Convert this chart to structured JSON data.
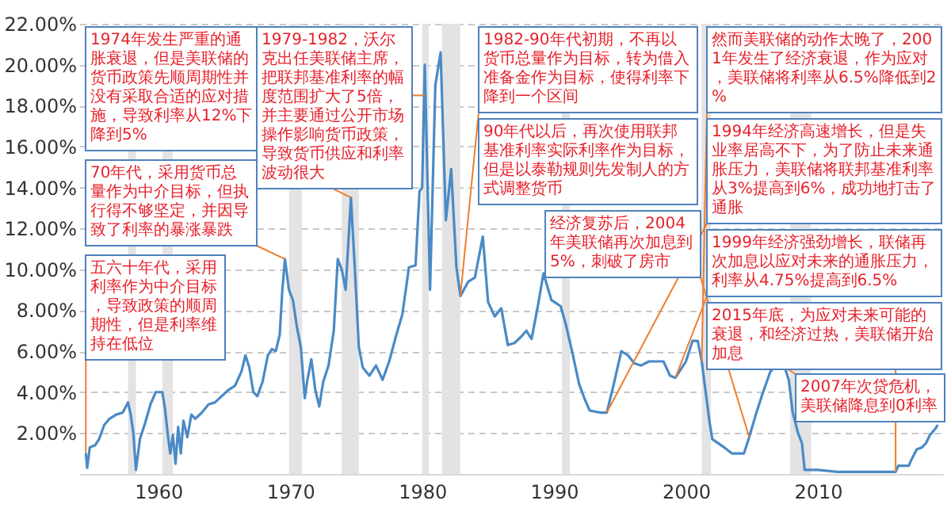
{
  "chart_data": {
    "type": "line",
    "x": [
      1954.5,
      1954.6,
      1954.8,
      1955.2,
      1955.5,
      1955.9,
      1956.3,
      1956.8,
      1957.3,
      1957.7,
      1957.9,
      1958.1,
      1958.3,
      1958.6,
      1959.0,
      1959.4,
      1959.8,
      1960.3,
      1960.5,
      1960.7,
      1960.9,
      1961.1,
      1961.3,
      1961.5,
      1961.7,
      1961.9,
      1962.2,
      1962.5,
      1962.8,
      1963.3,
      1963.8,
      1964.3,
      1964.8,
      1965.3,
      1965.8,
      1966.3,
      1966.6,
      1966.9,
      1967.2,
      1967.5,
      1967.9,
      1968.3,
      1968.6,
      1968.9,
      1969.2,
      1969.4,
      1969.6,
      1969.9,
      1970.2,
      1970.5,
      1970.8,
      1971.1,
      1971.3,
      1971.6,
      1971.9,
      1972.2,
      1972.5,
      1972.9,
      1973.3,
      1973.6,
      1973.9,
      1974.2,
      1974.6,
      1974.9,
      1975.2,
      1975.5,
      1976.0,
      1976.5,
      1977.0,
      1977.5,
      1978.0,
      1978.5,
      1979.0,
      1979.5,
      1979.8,
      1980.0,
      1980.2,
      1980.6,
      1981.0,
      1981.4,
      1981.8,
      1982.2,
      1982.6,
      1982.9,
      1983.5,
      1984.0,
      1984.6,
      1985.0,
      1985.5,
      1986.0,
      1986.5,
      1987.0,
      1987.5,
      1987.9,
      1988.3,
      1988.8,
      1989.2,
      1989.8,
      1990.5,
      1990.9,
      1991.4,
      1991.9,
      1992.3,
      1992.7,
      1993.5,
      1994.0,
      1994.5,
      1995.1,
      1995.6,
      1996.1,
      1996.6,
      1997.2,
      1997.7,
      1998.3,
      1998.8,
      1999.2,
      1999.6,
      2000.0,
      2000.5,
      2000.9,
      2001.2,
      2001.5,
      2001.8,
      2002.0,
      2002.9,
      2003.5,
      2004.4,
      2004.8,
      2005.3,
      2005.8,
      2006.4,
      2006.7,
      2007.5,
      2007.8,
      2008.1,
      2008.5,
      2008.8,
      2009.0,
      2010.0,
      2011.5,
      2013.0,
      2014.5,
      2015.9,
      2016.1,
      2016.9,
      2017.1,
      2017.5,
      2017.9,
      2018.2,
      2018.5,
      2018.9,
      2019.1
    ],
    "series": [
      {
        "color": "#4a8ac6",
        "values": [
          1.0,
          0.3,
          1.3,
          1.4,
          1.7,
          2.4,
          2.7,
          2.9,
          3.0,
          3.5,
          2.9,
          2.0,
          0.2,
          1.7,
          2.5,
          3.4,
          4.0,
          4.0,
          3.2,
          2.0,
          1.0,
          1.9,
          0.5,
          2.3,
          1.0,
          2.6,
          1.8,
          2.9,
          2.7,
          3.0,
          3.4,
          3.5,
          3.8,
          4.1,
          4.3,
          5.0,
          5.8,
          5.2,
          4.0,
          3.8,
          4.5,
          5.8,
          6.1,
          6.0,
          6.8,
          9.0,
          10.5,
          9.0,
          8.5,
          7.2,
          6.2,
          3.7,
          4.6,
          5.6,
          4.1,
          3.3,
          4.5,
          5.3,
          7.0,
          10.5,
          10.0,
          9.0,
          13.5,
          10.0,
          6.2,
          5.2,
          4.8,
          5.3,
          4.6,
          5.5,
          6.7,
          7.8,
          10.1,
          10.2,
          13.8,
          14.0,
          20.0,
          9.0,
          19.0,
          20.6,
          12.4,
          14.9,
          10.1,
          8.7,
          9.4,
          9.6,
          11.6,
          8.4,
          7.7,
          8.1,
          6.3,
          6.4,
          6.7,
          7.0,
          6.6,
          8.3,
          9.8,
          8.5,
          8.2,
          7.3,
          5.9,
          4.4,
          3.7,
          3.1,
          3.0,
          3.0,
          4.3,
          6.0,
          5.8,
          5.4,
          5.3,
          5.5,
          5.5,
          5.5,
          4.8,
          4.7,
          5.1,
          5.5,
          6.5,
          6.5,
          5.5,
          4.0,
          2.5,
          1.7,
          1.3,
          1.0,
          1.0,
          1.8,
          2.9,
          3.9,
          5.0,
          5.2,
          5.2,
          4.6,
          3.0,
          2.0,
          1.5,
          0.2,
          0.2,
          0.1,
          0.1,
          0.1,
          0.1,
          0.4,
          0.4,
          0.7,
          1.2,
          1.3,
          1.5,
          1.9,
          2.2,
          2.4
        ]
      }
    ],
    "xlim": [
      1954,
      2019.5
    ],
    "xticks": [
      1960,
      1970,
      1980,
      1990,
      2000,
      2010
    ],
    "ylim": [
      0,
      22
    ],
    "yticks": [
      {
        "value": 0,
        "label": null
      },
      {
        "value": 2,
        "label": "2.00%"
      },
      {
        "value": 4,
        "label": "4.00%"
      },
      {
        "value": 6,
        "label": "6.00%"
      },
      {
        "value": 8,
        "label": "8.00%"
      },
      {
        "value": 10,
        "label": "10.00%"
      },
      {
        "value": 12,
        "label": "12.00%"
      },
      {
        "value": 14,
        "label": "14.00%"
      },
      {
        "value": 16,
        "label": "16.00%"
      },
      {
        "value": 18,
        "label": "18.00%"
      },
      {
        "value": 20,
        "label": "20.00%"
      },
      {
        "value": 22,
        "label": "22.00%"
      }
    ],
    "grid": "y",
    "bands": [
      {
        "axis": "x",
        "from": 1957.7,
        "to": 1958.3,
        "color": "#e3e3e3"
      },
      {
        "axis": "x",
        "from": 1960.3,
        "to": 1961.1,
        "color": "#e3e3e3"
      },
      {
        "axis": "x",
        "from": 1969.9,
        "to": 1970.9,
        "color": "#e3e3e3"
      },
      {
        "axis": "x",
        "from": 1973.9,
        "to": 1975.2,
        "color": "#e3e3e3"
      },
      {
        "axis": "x",
        "from": 1980.0,
        "to": 1980.5,
        "color": "#e3e3e3"
      },
      {
        "axis": "x",
        "from": 1981.5,
        "to": 1982.9,
        "color": "#e3e3e3"
      },
      {
        "axis": "x",
        "from": 1990.6,
        "to": 1991.2,
        "color": "#e3e3e3"
      },
      {
        "axis": "x",
        "from": 2001.2,
        "to": 2001.9,
        "color": "#e3e3e3"
      },
      {
        "axis": "x",
        "from": 2007.9,
        "to": 2009.5,
        "color": "#e3e3e3"
      }
    ],
    "annotations": [
      {
        "text": "五六十年代，采用利率作为中介目标，导致政策的顺周期性，但是利率维持在低位",
        "x": 1954.5,
        "y": 1.0
      },
      {
        "text": "70年代，采用货币总量作为中介目标，但执行得不够坚定，并因导致了利率的暴涨暴跌",
        "x": 1969.6,
        "y": 10.5
      },
      {
        "text": "1974年发生严重的通胀衰退，但是美联储的货币政策先顺周期性并没有采取合适的应对措施，导致利率从12%下降到5%",
        "x": 1974.6,
        "y": 13.5
      },
      {
        "text": "1979-1982，沃尔克出任美联储主席，把联邦基准利率的幅度范围扩大了5倍，并主要通过公开市场操作影响货币政策，导致货币供应和利率波动很大",
        "x": 1980.2,
        "y": 18.5
      },
      {
        "text": "1982-90年代初期，不再以货币总量作为目标，转为借入准备金作为目标，使得利率下降到一个区间",
        "x": 1982.9,
        "y": 8.7
      },
      "90年代以后，再次使用联邦基准利率实际利率作为目标，但是以泰勒规则先发制人的方式调整货币",
      {
        "text": "1994年经济高速增长，但是失业率居高不下，为了防止未来通胀压力，美联储将联邦基准利率从3%提高到6%，成功地打击了通胀",
        "x": 1994.0,
        "y": 3.0
      },
      {
        "text": "1999年经济强劲增长，联储再次加息以应对未来的通胀压力，利率从4.75%提高到6.5%",
        "x": 1999.2,
        "y": 4.7
      },
      {
        "text": "经济复苏后，2004年美联储再次加息到5%，刺破了房市",
        "x": 2004.8,
        "y": 1.8
      },
      {
        "text": "然而美联储的动作太晚了，2001年发生了经济衰退，作为应对，美联储将利率从6.5%降低到2%",
        "x": 2001.2,
        "y": 5.5
      },
      {
        "text": "2007年次贷危机，美联储降息到0利率",
        "x": 2007.5,
        "y": 5.2
      },
      {
        "text": "2015年底，为应对未来可能的衰退，和经济过热，美联储开始加息",
        "x": 2015.9,
        "y": 0.1
      }
    ]
  }
}
